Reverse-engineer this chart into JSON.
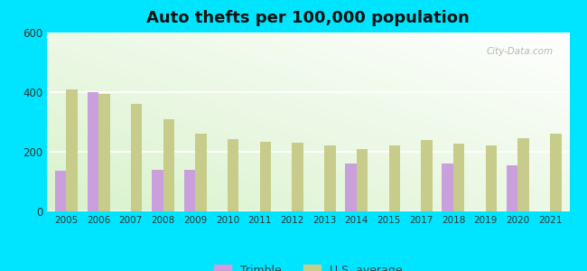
{
  "title": "Auto thefts per 100,000 population",
  "years": [
    2005,
    2006,
    2007,
    2008,
    2009,
    2010,
    2011,
    2012,
    2013,
    2014,
    2015,
    2017,
    2018,
    2019,
    2020,
    2021
  ],
  "trimble": [
    135,
    400,
    0,
    140,
    140,
    0,
    0,
    0,
    0,
    160,
    0,
    0,
    160,
    0,
    155,
    0
  ],
  "us_avg": [
    410,
    395,
    360,
    310,
    260,
    242,
    232,
    230,
    220,
    210,
    220,
    240,
    228,
    220,
    246,
    260
  ],
  "trimble_color": "#c9a0dc",
  "us_avg_color": "#c8cc8a",
  "bg_outer": "#00e5ff",
  "ylim": [
    0,
    600
  ],
  "yticks": [
    0,
    200,
    400,
    600
  ],
  "bar_width": 0.35,
  "title_fontsize": 13,
  "legend_labels": [
    "Trimble",
    "U.S. average"
  ],
  "watermark": "City-Data.com"
}
